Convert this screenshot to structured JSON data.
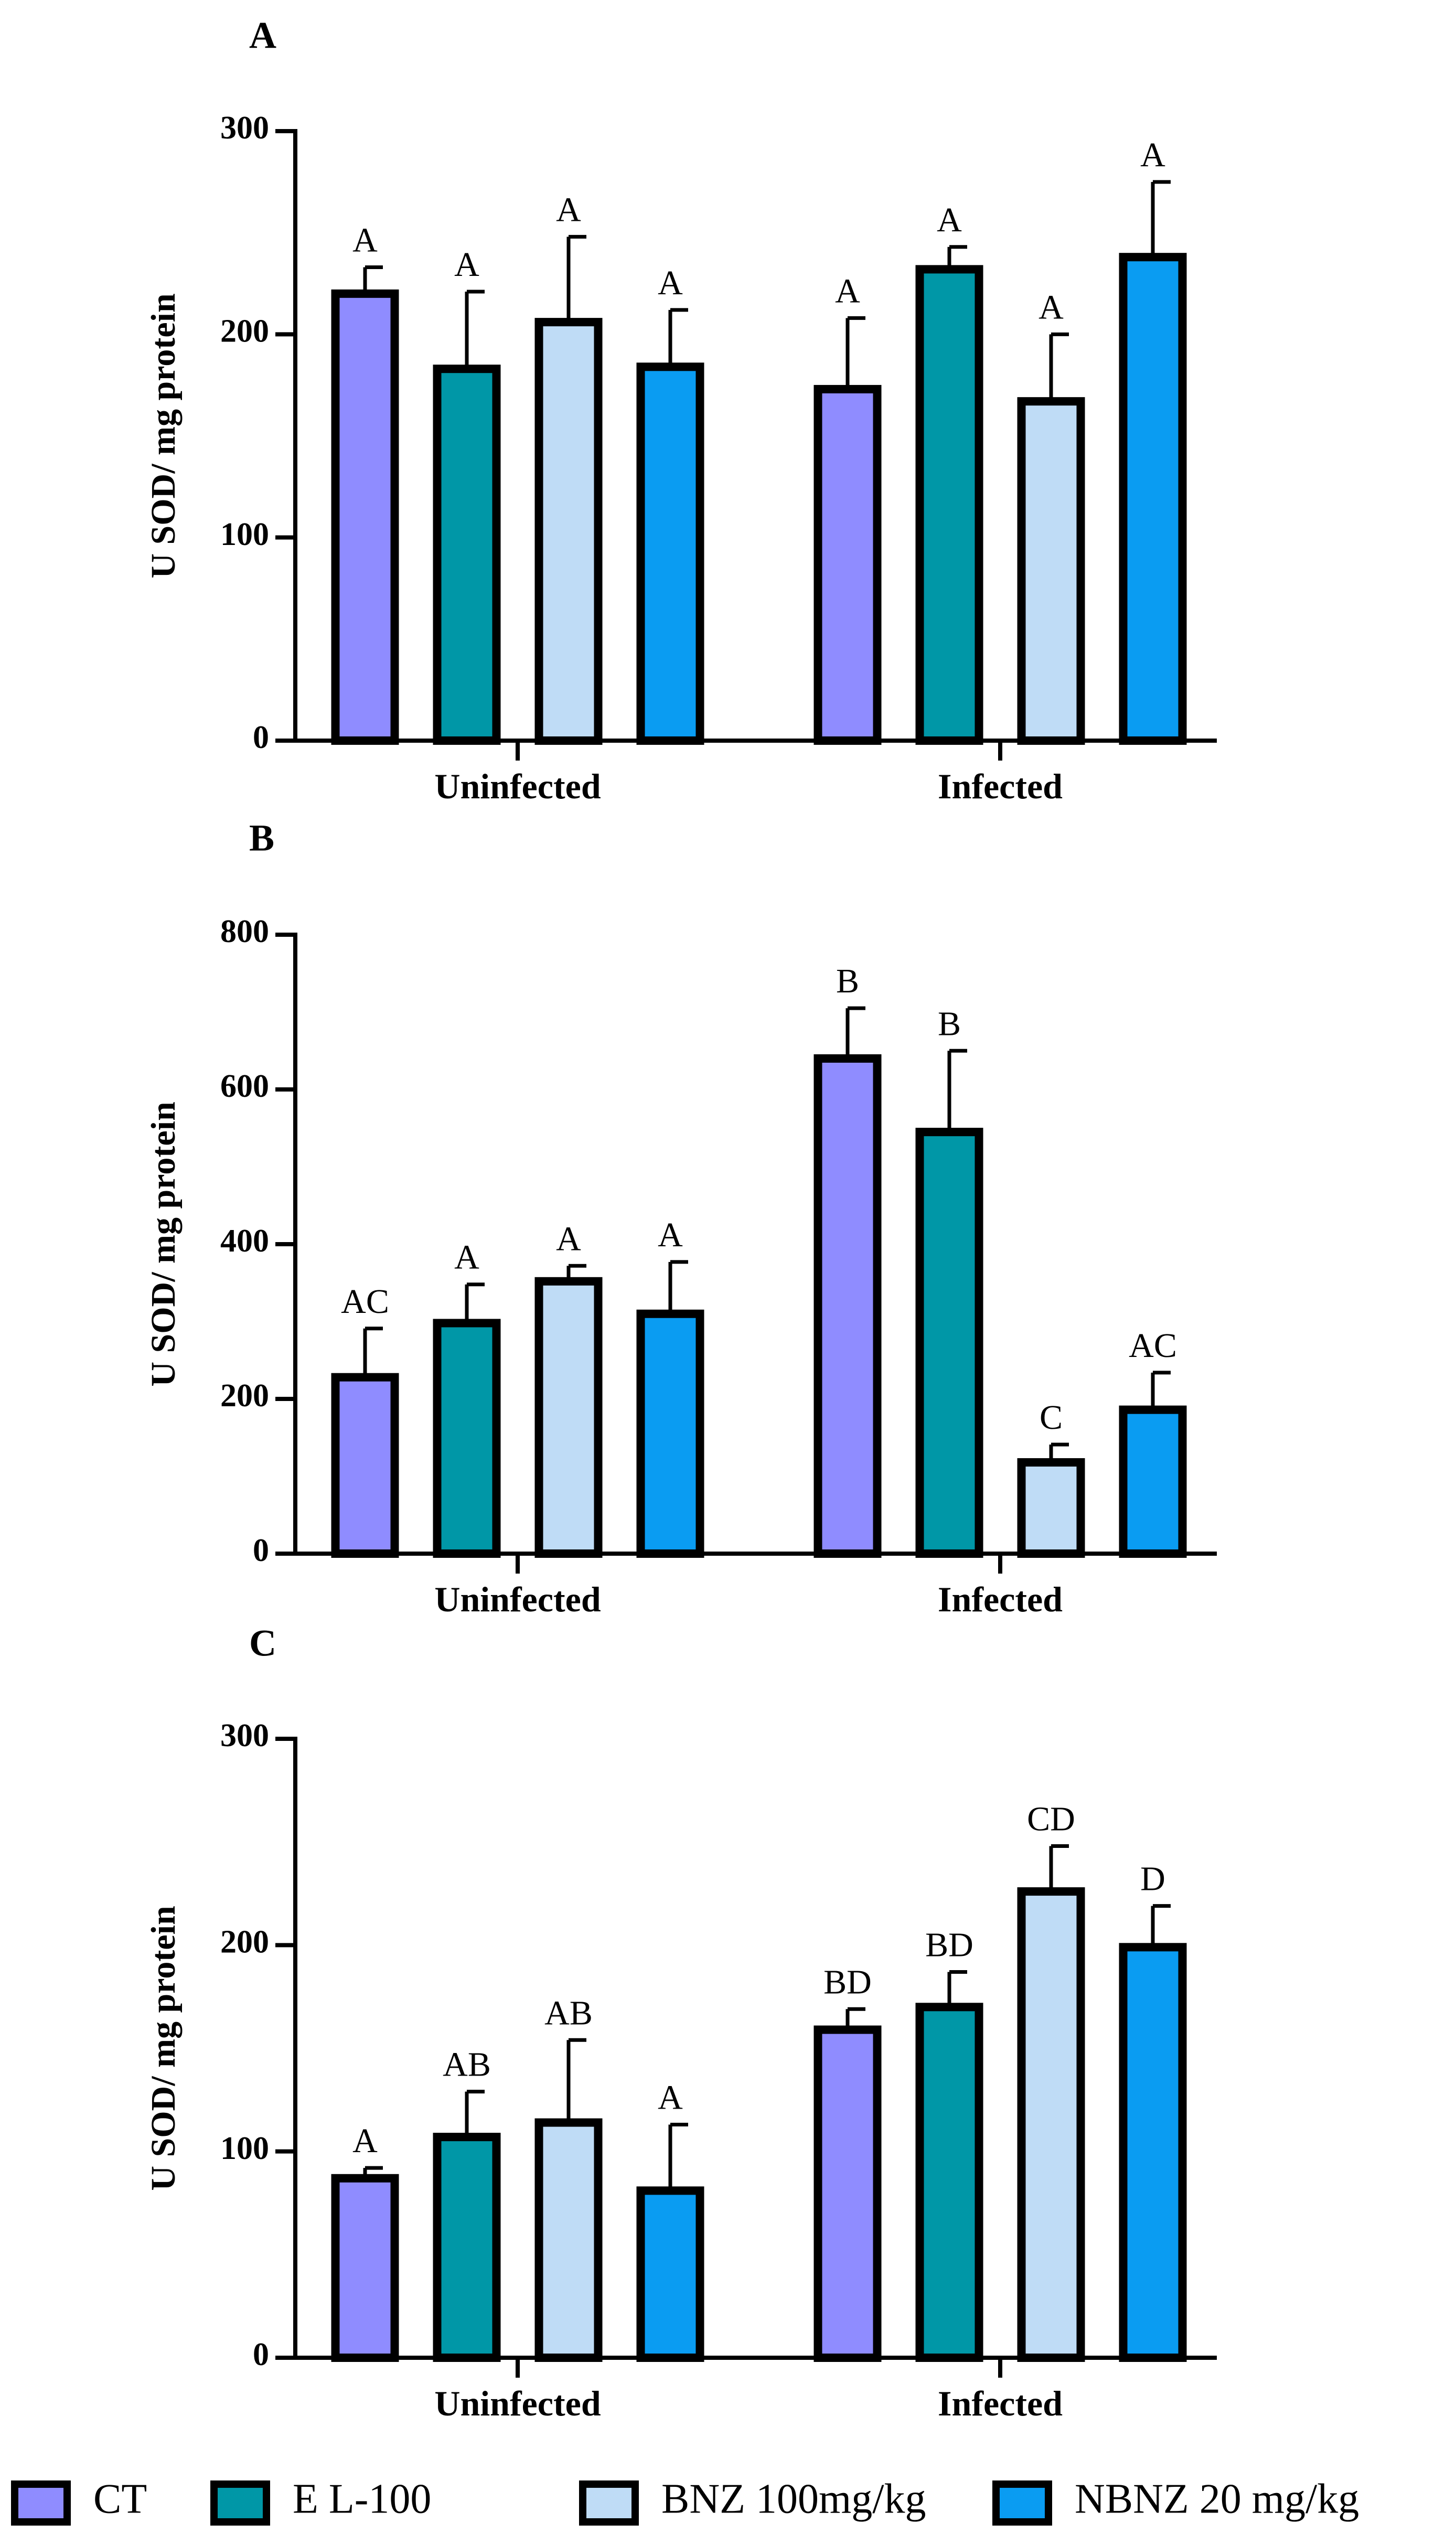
{
  "legend": {
    "series": [
      {
        "name": "CT",
        "color": "#8f8cff"
      },
      {
        "name": "E L-100",
        "color": "#0097a7"
      },
      {
        "name": "BNZ 100mg/kg",
        "color": "#bfdcf6"
      },
      {
        "name": "NBNZ 20 mg/kg",
        "color": "#0a9cf2"
      }
    ]
  },
  "chart_data": [
    {
      "panel": "A",
      "type": "bar",
      "ylabel": "U SOD/ mg protein",
      "xlabel": "",
      "ylim": [
        0,
        300
      ],
      "yticks": [
        0,
        100,
        200,
        300
      ],
      "categories": [
        "Uninfected",
        "Infected"
      ],
      "series": [
        {
          "name": "CT",
          "values": [
            220,
            173
          ],
          "errors": [
            13,
            35
          ],
          "labels": [
            "A",
            "A"
          ]
        },
        {
          "name": "E L-100",
          "values": [
            183,
            232
          ],
          "errors": [
            38,
            11
          ],
          "labels": [
            "A",
            "A"
          ]
        },
        {
          "name": "BNZ 100mg/kg",
          "values": [
            206,
            167
          ],
          "errors": [
            42,
            33
          ],
          "labels": [
            "A",
            "A"
          ]
        },
        {
          "name": "NBNZ 20 mg/kg",
          "values": [
            184,
            238
          ],
          "errors": [
            28,
            37
          ],
          "labels": [
            "A",
            "A"
          ]
        }
      ]
    },
    {
      "panel": "B",
      "type": "bar",
      "ylabel": "U SOD/ mg protein",
      "xlabel": "",
      "ylim": [
        0,
        800
      ],
      "yticks": [
        0,
        200,
        400,
        600,
        800
      ],
      "categories": [
        "Uninfected",
        "Infected"
      ],
      "series": [
        {
          "name": "CT",
          "values": [
            228,
            640
          ],
          "errors": [
            63,
            65
          ],
          "labels": [
            "AC",
            "B"
          ]
        },
        {
          "name": "E L-100",
          "values": [
            298,
            545
          ],
          "errors": [
            50,
            105
          ],
          "labels": [
            "A",
            "B"
          ]
        },
        {
          "name": "BNZ 100mg/kg",
          "values": [
            352,
            118
          ],
          "errors": [
            20,
            23
          ],
          "labels": [
            "A",
            "C"
          ]
        },
        {
          "name": "NBNZ 20 mg/kg",
          "values": [
            310,
            186
          ],
          "errors": [
            67,
            48
          ],
          "labels": [
            "A",
            "AC"
          ]
        }
      ]
    },
    {
      "panel": "C",
      "type": "bar",
      "ylabel": "U SOD/ mg protein",
      "xlabel": "",
      "ylim": [
        0,
        300
      ],
      "yticks": [
        0,
        100,
        200,
        300
      ],
      "categories": [
        "Uninfected",
        "Infected"
      ],
      "series": [
        {
          "name": "CT",
          "values": [
            87,
            159
          ],
          "errors": [
            5,
            10
          ],
          "labels": [
            "A",
            "BD"
          ]
        },
        {
          "name": "E L-100",
          "values": [
            107,
            170
          ],
          "errors": [
            22,
            17
          ],
          "labels": [
            "AB",
            "BD"
          ]
        },
        {
          "name": "BNZ 100mg/kg",
          "values": [
            114,
            226
          ],
          "errors": [
            40,
            22
          ],
          "labels": [
            "AB",
            "CD"
          ]
        },
        {
          "name": "NBNZ 20 mg/kg",
          "values": [
            81,
            199
          ],
          "errors": [
            32,
            20
          ],
          "labels": [
            "A",
            "D"
          ]
        }
      ]
    }
  ]
}
